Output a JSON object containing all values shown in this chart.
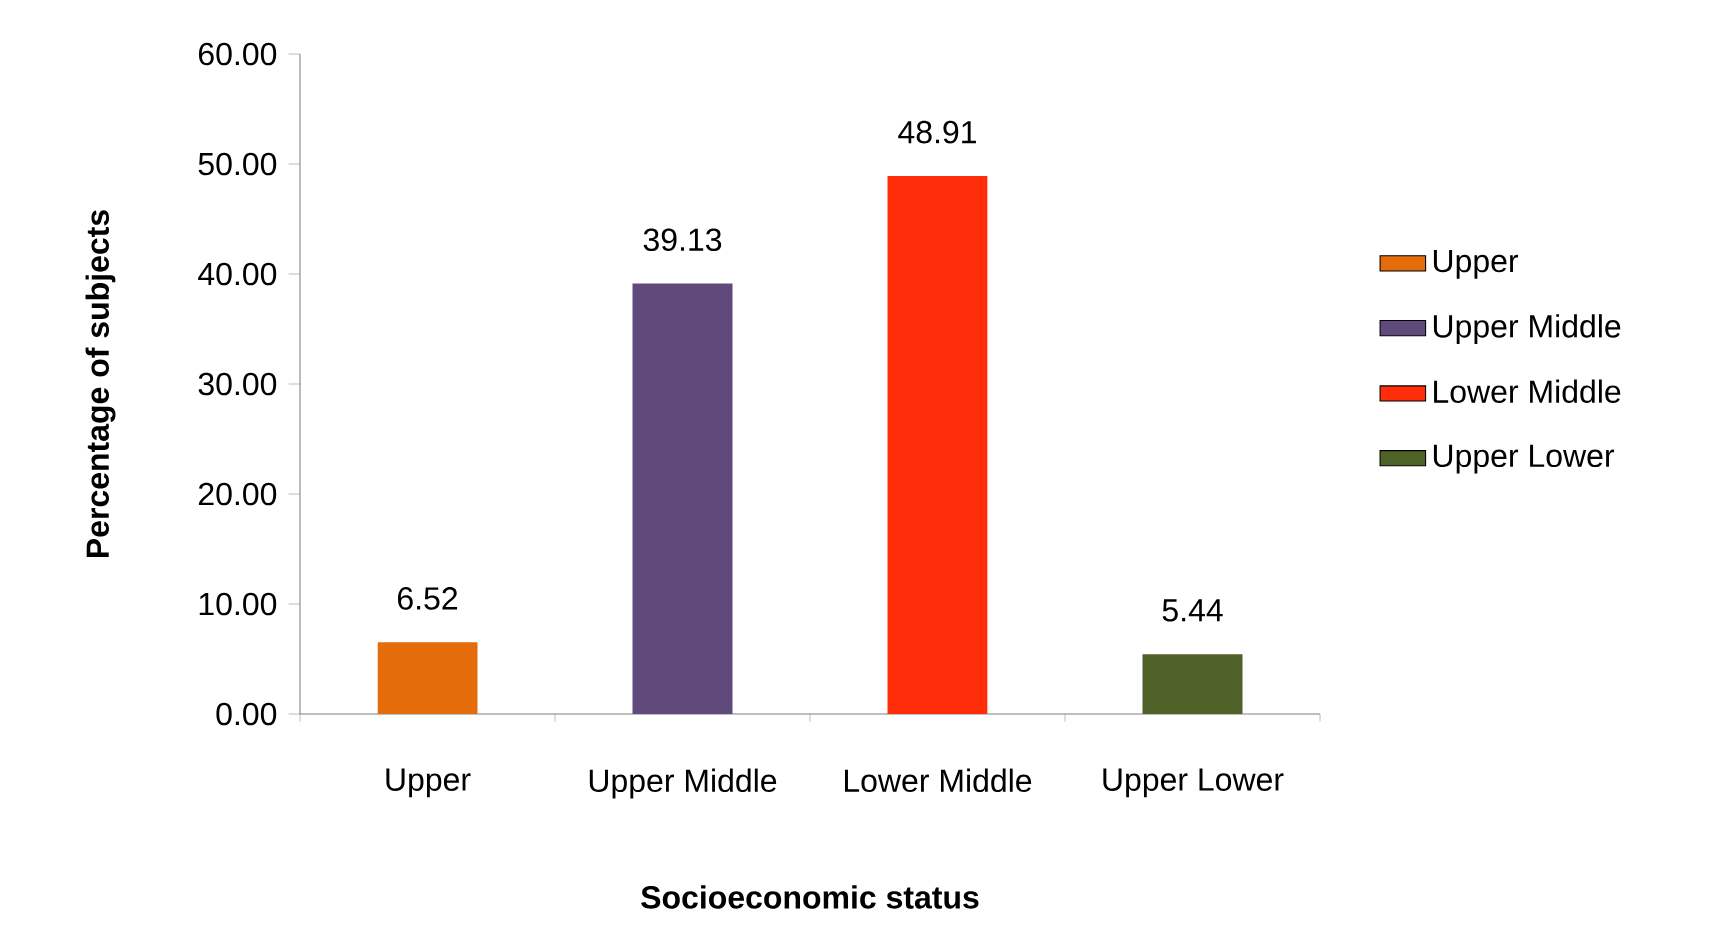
{
  "chart_data": {
    "type": "bar",
    "xlabel": "Socioeconomic status",
    "ylabel": "Percentage of subjects",
    "categories": [
      "Upper",
      "Upper Middle",
      "Lower Middle",
      "Upper Lower"
    ],
    "series": [
      {
        "name": "Upper",
        "color": "#e46c0a",
        "values": [
          6.52,
          null,
          null,
          null
        ]
      },
      {
        "name": "Upper Middle",
        "color": "#604a7b",
        "values": [
          null,
          39.13,
          null,
          null
        ]
      },
      {
        "name": "Lower Middle",
        "color": "#ff2d09",
        "values": [
          null,
          null,
          48.91,
          null
        ]
      },
      {
        "name": "Upper Lower",
        "color": "#4f6228",
        "values": [
          null,
          null,
          null,
          5.44
        ]
      }
    ],
    "ylim": [
      0,
      60
    ],
    "yticks": [
      {
        "value": 0,
        "label": "0.00"
      },
      {
        "value": 10,
        "label": "10.00"
      },
      {
        "value": 20,
        "label": "20.00"
      },
      {
        "value": 30,
        "label": "30.00"
      },
      {
        "value": 40,
        "label": "40.00"
      },
      {
        "value": 50,
        "label": "50.00"
      },
      {
        "value": 60,
        "label": "60.00"
      }
    ],
    "data_labels": true,
    "grid": false,
    "legend": "right"
  }
}
